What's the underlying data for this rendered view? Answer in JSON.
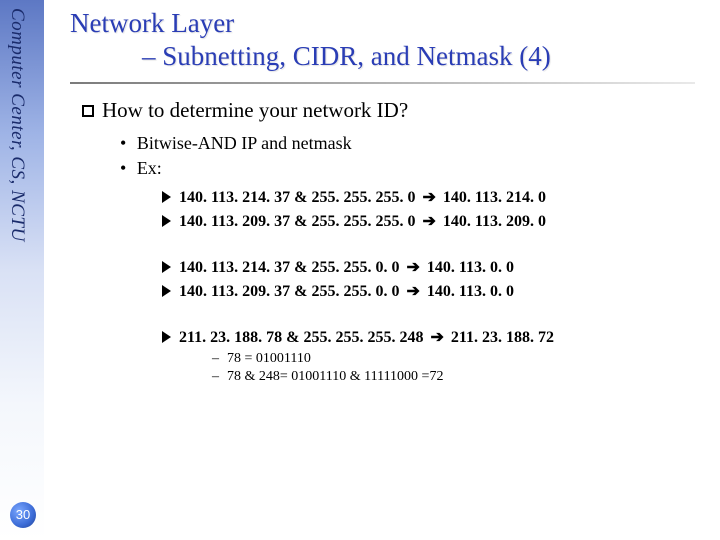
{
  "sidebar": {
    "label": "Computer Center, CS, NCTU",
    "text_color": "#1a2b6b",
    "gradient_top": "#5d78c4",
    "gradient_bottom": "#ffffff"
  },
  "page_number": "30",
  "title": {
    "line1": "Network Layer",
    "line2": "– Subnetting, CIDR, and Netmask (4)",
    "color": "#2a3db5",
    "fontsize": 27
  },
  "question": {
    "text": "How to determine your network ID?",
    "fontsize": 21
  },
  "sub_bullets": [
    "Bitwise-AND IP and netmask",
    "Ex:"
  ],
  "examples_group1": [
    {
      "ip": "140. 113. 214. 37",
      "mask": "255. 255. 255. 0",
      "result": "140. 113. 214. 0"
    },
    {
      "ip": "140. 113. 209. 37",
      "mask": "255. 255. 255. 0",
      "result": "140. 113. 209. 0"
    }
  ],
  "examples_group2": [
    {
      "ip": "140. 113. 214. 37",
      "mask": "255. 255. 0. 0",
      "result": "140. 113. 0. 0"
    },
    {
      "ip": "140. 113. 209. 37",
      "mask": "255. 255. 0. 0",
      "result": "140. 113. 0. 0"
    }
  ],
  "examples_group3": [
    {
      "ip": "211. 23. 188. 78",
      "mask": "255. 255. 255. 248",
      "result": "211. 23. 188. 72"
    }
  ],
  "binary_lines": [
    "78 = 01001110",
    "78 & 248= 01001110 & 11111000 =72"
  ],
  "arrow_glyph": "➔"
}
